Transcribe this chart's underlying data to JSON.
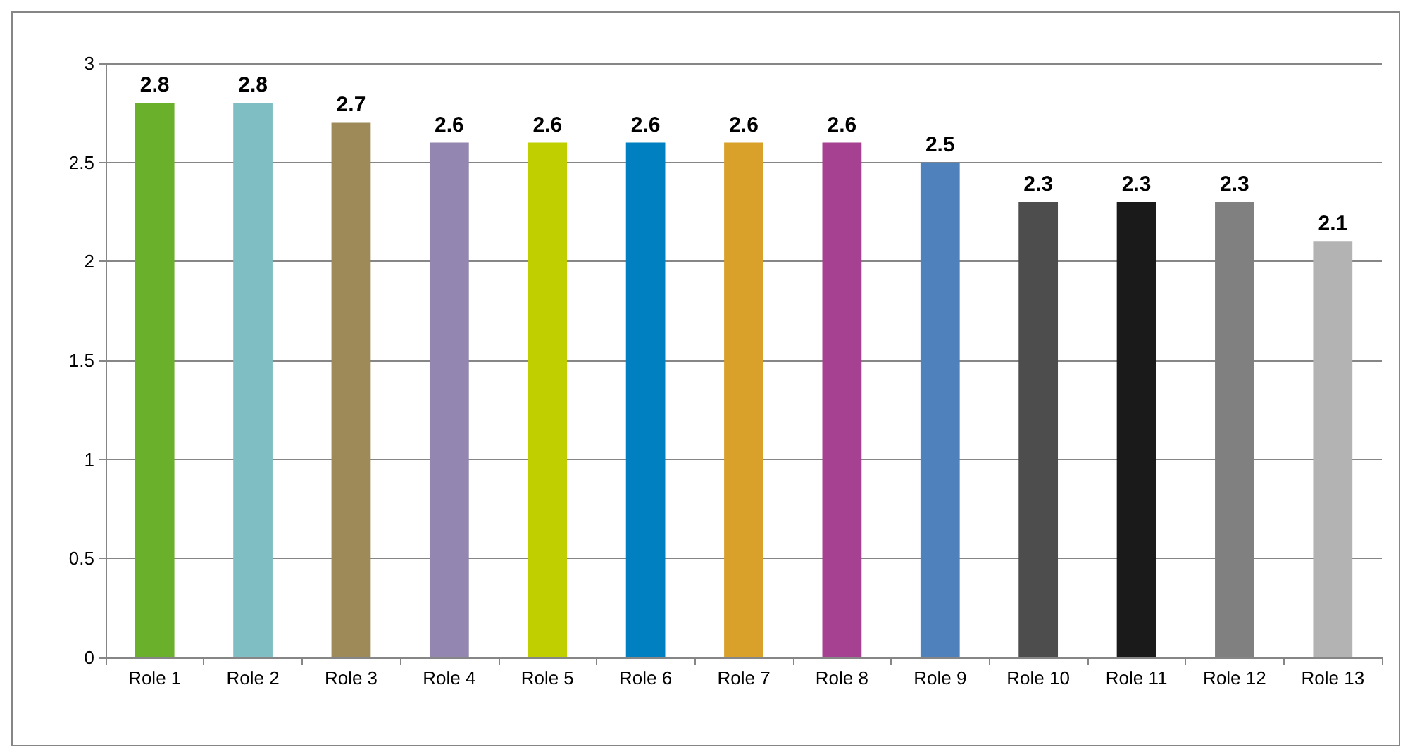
{
  "chart_data": {
    "type": "bar",
    "categories": [
      "Role 1",
      "Role 2",
      "Role 3",
      "Role 4",
      "Role 5",
      "Role 6",
      "Role 7",
      "Role 8",
      "Role 9",
      "Role 10",
      "Role 11",
      "Role 12",
      "Role 13"
    ],
    "values": [
      2.8,
      2.8,
      2.7,
      2.6,
      2.6,
      2.6,
      2.6,
      2.6,
      2.5,
      2.3,
      2.3,
      2.3,
      2.1
    ],
    "colors": [
      "#6ab02a",
      "#7fbfc4",
      "#9e8a58",
      "#9386b0",
      "#bfcf00",
      "#0080c0",
      "#d9a02a",
      "#a64090",
      "#4f81bd",
      "#4d4d4d",
      "#1a1a1a",
      "#808080",
      "#b3b3b3"
    ],
    "ylim": [
      0,
      3
    ],
    "yticks": [
      0,
      0.5,
      1,
      1.5,
      2,
      2.5,
      3
    ],
    "grid": "y",
    "data_labels": true
  }
}
